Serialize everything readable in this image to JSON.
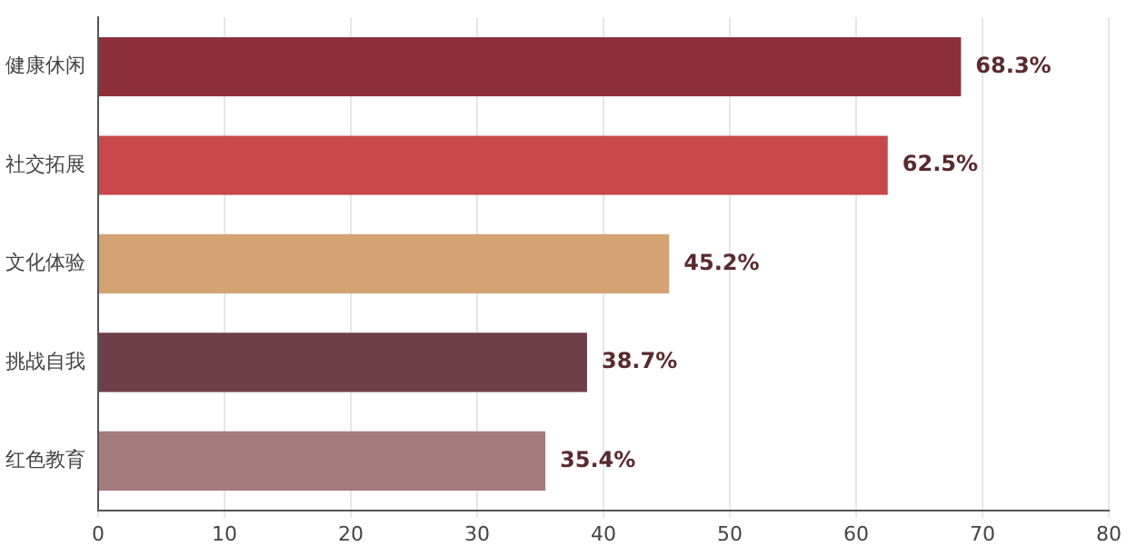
{
  "chart_data": {
    "type": "bar",
    "orientation": "horizontal",
    "categories": [
      "健康休闲",
      "社交拓展",
      "文化体验",
      "挑战自我",
      "红色教育"
    ],
    "values": [
      68.3,
      62.5,
      45.2,
      38.7,
      35.4
    ],
    "colors": [
      "#8c2f39",
      "#c8474b",
      "#d4a373",
      "#6d3f47",
      "#a37b7f"
    ],
    "value_labels": [
      "68.3%",
      "62.5%",
      "45.2%",
      "38.7%",
      "35.4%"
    ],
    "xlim": [
      0,
      80
    ],
    "xticks": [
      0,
      10,
      20,
      30,
      40,
      50,
      60,
      70,
      80
    ],
    "grid": "x"
  }
}
